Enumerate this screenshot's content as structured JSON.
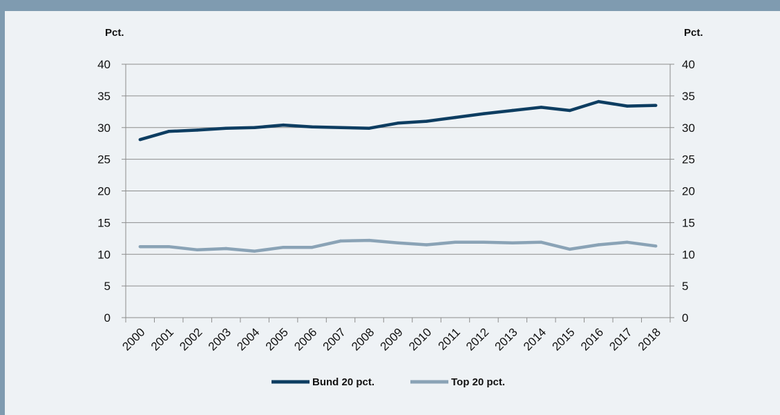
{
  "chart_data": {
    "type": "line",
    "y_unit_left": "Pct.",
    "y_unit_right": "Pct.",
    "ylim": [
      0,
      40
    ],
    "yticks": [
      0,
      5,
      10,
      15,
      20,
      25,
      30,
      35,
      40
    ],
    "grid": true,
    "legend_position": "bottom",
    "categories": [
      "2000",
      "2001",
      "2002",
      "2003",
      "2004",
      "2005",
      "2006",
      "2007",
      "2008",
      "2009",
      "2010",
      "2011",
      "2012",
      "2013",
      "2014",
      "2015",
      "2016",
      "2017",
      "2018"
    ],
    "series": [
      {
        "name": "Bund 20 pct.",
        "color": "#0d3d61",
        "values": [
          28.1,
          29.4,
          29.6,
          29.9,
          30.0,
          30.4,
          30.1,
          30.0,
          29.9,
          30.7,
          31.0,
          31.6,
          32.2,
          32.7,
          33.2,
          32.7,
          34.1,
          33.4,
          33.5
        ]
      },
      {
        "name": "Top 20 pct.",
        "color": "#8aa3b6",
        "values": [
          11.2,
          11.2,
          10.7,
          10.9,
          10.5,
          11.1,
          11.1,
          12.1,
          12.2,
          11.8,
          11.5,
          11.9,
          11.9,
          11.8,
          11.9,
          10.8,
          11.5,
          11.9,
          11.3
        ]
      }
    ]
  }
}
